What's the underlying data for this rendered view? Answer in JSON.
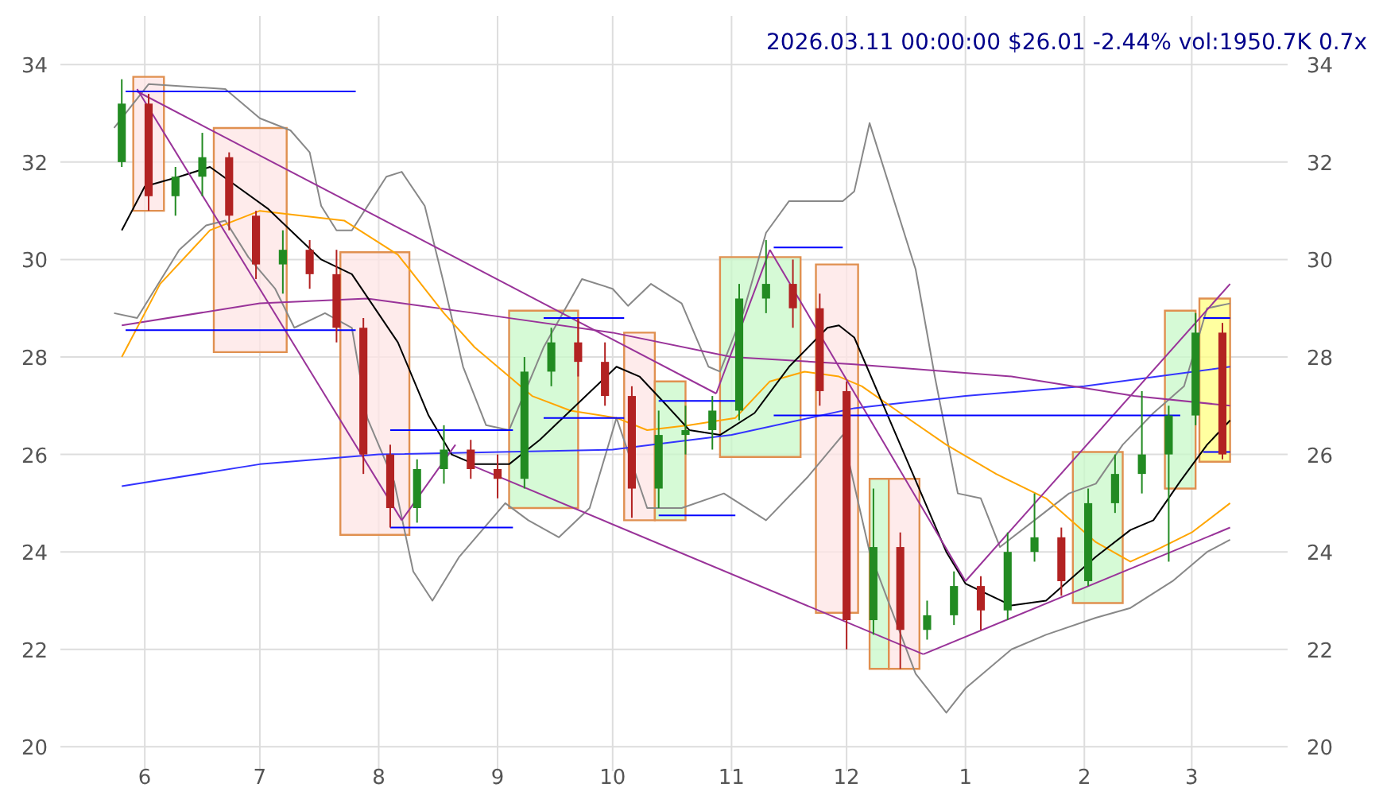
{
  "chart_data": {
    "type": "candlestick",
    "title": "2026.03.11 00:00:00 $26.01 -2.44% vol:1950.7K 0.7x",
    "xlim": [
      "2025-05-10",
      "2026-03-26"
    ],
    "xticks": [
      {
        "value": "2025-06-01",
        "label": "6"
      },
      {
        "value": "2025-07-01",
        "label": "7"
      },
      {
        "value": "2025-08-01",
        "label": "8"
      },
      {
        "value": "2025-09-01",
        "label": "9"
      },
      {
        "value": "2025-10-01",
        "label": "10"
      },
      {
        "value": "2025-11-01",
        "label": "11"
      },
      {
        "value": "2025-12-01",
        "label": "12"
      },
      {
        "value": "2026-01-01",
        "label": "1"
      },
      {
        "value": "2026-02-01",
        "label": "2"
      },
      {
        "value": "2026-03-01",
        "label": "3"
      }
    ],
    "ylim": [
      19.5,
      35
    ],
    "yticks": [
      20,
      22,
      24,
      26,
      28,
      30,
      32,
      34
    ],
    "y2lim": [
      19.5,
      35
    ],
    "y2ticks": [
      20,
      22,
      24,
      26,
      28,
      30,
      32,
      34
    ],
    "grid": true,
    "x": [
      "2025-05-26",
      "2025-06-02",
      "2025-06-09",
      "2025-06-16",
      "2025-06-23",
      "2025-06-30",
      "2025-07-07",
      "2025-07-14",
      "2025-07-21",
      "2025-07-28",
      "2025-08-04",
      "2025-08-11",
      "2025-08-18",
      "2025-08-25",
      "2025-09-01",
      "2025-09-08",
      "2025-09-15",
      "2025-09-22",
      "2025-09-29",
      "2025-10-06",
      "2025-10-13",
      "2025-10-20",
      "2025-10-27",
      "2025-11-03",
      "2025-11-10",
      "2025-11-17",
      "2025-11-24",
      "2025-12-01",
      "2025-12-08",
      "2025-12-15",
      "2025-12-22",
      "2025-12-29",
      "2026-01-05",
      "2026-01-12",
      "2026-01-19",
      "2026-01-26",
      "2026-02-02",
      "2026-02-09",
      "2026-02-16",
      "2026-02-23",
      "2026-03-02",
      "2026-03-09"
    ],
    "ohlc": [
      [
        32.0,
        33.7,
        31.9,
        33.2
      ],
      [
        33.2,
        33.4,
        31.0,
        31.3
      ],
      [
        31.3,
        31.9,
        30.9,
        31.7
      ],
      [
        31.7,
        32.6,
        31.3,
        32.1
      ],
      [
        32.1,
        32.2,
        30.6,
        30.9
      ],
      [
        30.9,
        31.0,
        29.6,
        29.9
      ],
      [
        29.9,
        30.6,
        29.3,
        30.2
      ],
      [
        30.2,
        30.4,
        29.4,
        29.7
      ],
      [
        29.7,
        30.2,
        28.3,
        28.6
      ],
      [
        28.6,
        28.8,
        25.6,
        26.0
      ],
      [
        26.0,
        26.2,
        24.5,
        24.9
      ],
      [
        24.9,
        25.9,
        24.6,
        25.7
      ],
      [
        25.7,
        26.6,
        25.4,
        26.1
      ],
      [
        26.1,
        26.3,
        25.5,
        25.7
      ],
      [
        25.7,
        26.0,
        25.1,
        25.5
      ],
      [
        25.5,
        28.0,
        25.3,
        27.7
      ],
      [
        27.7,
        28.6,
        27.4,
        28.3
      ],
      [
        28.3,
        28.8,
        27.6,
        27.9
      ],
      [
        27.9,
        28.3,
        27.0,
        27.2
      ],
      [
        27.2,
        27.4,
        24.7,
        25.3
      ],
      [
        25.3,
        26.9,
        24.9,
        26.4
      ],
      [
        26.4,
        27.0,
        26.0,
        26.5
      ],
      [
        26.5,
        27.2,
        26.1,
        26.9
      ],
      [
        26.9,
        29.5,
        26.7,
        29.2
      ],
      [
        29.2,
        30.4,
        28.9,
        29.5
      ],
      [
        29.5,
        30.0,
        28.6,
        29.0
      ],
      [
        29.0,
        29.3,
        27.0,
        27.3
      ],
      [
        27.3,
        27.5,
        22.0,
        22.6
      ],
      [
        22.6,
        25.3,
        22.3,
        24.1
      ],
      [
        24.1,
        24.4,
        21.6,
        22.4
      ],
      [
        22.4,
        23.0,
        22.2,
        22.7
      ],
      [
        22.7,
        23.6,
        22.5,
        23.3
      ],
      [
        23.3,
        23.5,
        22.4,
        22.8
      ],
      [
        22.8,
        24.4,
        22.6,
        24.0
      ],
      [
        24.0,
        25.2,
        23.8,
        24.3
      ],
      [
        24.3,
        24.5,
        23.1,
        23.4
      ],
      [
        23.4,
        25.3,
        23.3,
        25.0
      ],
      [
        25.0,
        26.0,
        24.8,
        25.6
      ],
      [
        25.6,
        27.3,
        25.2,
        26.0
      ],
      [
        26.0,
        27.0,
        23.8,
        26.8
      ],
      [
        26.8,
        28.9,
        26.6,
        28.5
      ],
      [
        28.5,
        28.7,
        25.9,
        26.0
      ]
    ],
    "series": [
      {
        "type": "area",
        "color": "#fde4e4",
        "x": [
          "2025-05-29",
          "2025-05-29",
          "2025-06-06",
          "2025-06-06"
        ],
        "values": [
          31.0,
          33.75,
          33.75,
          31.0
        ]
      },
      {
        "type": "area",
        "color": "#fde4e4",
        "x": [
          "2025-06-19",
          "2025-06-19",
          "2025-07-08",
          "2025-07-08"
        ],
        "values": [
          28.1,
          32.7,
          32.7,
          28.1
        ]
      },
      {
        "type": "area",
        "color": "#fde4e4",
        "x": [
          "2025-07-22",
          "2025-07-22",
          "2025-08-09",
          "2025-08-09"
        ],
        "values": [
          24.35,
          30.15,
          30.15,
          24.35
        ]
      },
      {
        "type": "area",
        "color": "#c8f8c8",
        "x": [
          "2025-09-04",
          "2025-09-04",
          "2025-09-22",
          "2025-09-22"
        ],
        "values": [
          24.9,
          28.95,
          28.95,
          24.9
        ]
      },
      {
        "type": "area",
        "color": "#fde4e4",
        "x": [
          "2025-10-04",
          "2025-10-04",
          "2025-10-12",
          "2025-10-12"
        ],
        "values": [
          24.65,
          28.5,
          28.5,
          24.65
        ]
      },
      {
        "type": "area",
        "color": "#c8f8c8",
        "x": [
          "2025-10-12",
          "2025-10-12",
          "2025-10-20",
          "2025-10-20"
        ],
        "values": [
          24.65,
          27.5,
          27.5,
          24.65
        ]
      },
      {
        "type": "area",
        "color": "#c8f8c8",
        "x": [
          "2025-10-29",
          "2025-10-29",
          "2025-11-19",
          "2025-11-19"
        ],
        "values": [
          25.95,
          30.05,
          30.05,
          25.95
        ]
      },
      {
        "type": "area",
        "color": "#fde4e4",
        "x": [
          "2025-11-23",
          "2025-11-23",
          "2025-12-04",
          "2025-12-04"
        ],
        "values": [
          22.75,
          29.9,
          29.9,
          22.75
        ]
      },
      {
        "type": "area",
        "color": "#c8f8c8",
        "x": [
          "2025-12-07",
          "2025-12-07",
          "2025-12-12",
          "2025-12-12"
        ],
        "values": [
          21.6,
          25.5,
          25.5,
          21.6
        ]
      },
      {
        "type": "area",
        "color": "#fde4e4",
        "x": [
          "2025-12-12",
          "2025-12-12",
          "2025-12-20",
          "2025-12-20"
        ],
        "values": [
          21.6,
          25.5,
          25.5,
          21.6
        ]
      },
      {
        "type": "area",
        "color": "#c8f8c8",
        "x": [
          "2026-01-29",
          "2026-01-29",
          "2026-02-11",
          "2026-02-11"
        ],
        "values": [
          22.95,
          26.05,
          26.05,
          22.95
        ]
      },
      {
        "type": "area",
        "color": "#c8f8c8",
        "x": [
          "2026-02-22",
          "2026-02-22",
          "2026-03-02",
          "2026-03-02"
        ],
        "values": [
          25.3,
          28.95,
          28.95,
          25.3
        ]
      },
      {
        "type": "area",
        "color": "#ffff80",
        "x": [
          "2026-03-03",
          "2026-03-03",
          "2026-03-11",
          "2026-03-11"
        ],
        "values": [
          25.85,
          29.2,
          29.2,
          25.85
        ]
      },
      {
        "type": "line",
        "color": "#888888",
        "x": [
          "2025-05-24",
          "2025-06-02",
          "2025-06-22",
          "2025-07-01",
          "2025-07-09",
          "2025-07-14",
          "2025-07-17",
          "2025-07-21",
          "2025-07-25",
          "2025-08-03",
          "2025-08-07",
          "2025-08-13",
          "2025-08-18",
          "2025-08-23",
          "2025-08-29",
          "2025-09-04",
          "2025-09-13",
          "2025-09-23",
          "2025-10-01",
          "2025-10-05",
          "2025-10-11",
          "2025-10-19",
          "2025-10-26",
          "2025-10-29",
          "2025-11-04",
          "2025-11-10",
          "2025-11-16",
          "2025-11-30",
          "2025-12-03",
          "2025-12-07",
          "2025-12-19",
          "2025-12-24",
          "2025-12-30",
          "2026-01-05",
          "2026-01-10",
          "2026-01-19",
          "2026-01-28",
          "2026-02-04",
          "2026-02-11",
          "2026-02-19",
          "2026-02-27",
          "2026-03-05",
          "2026-03-11"
        ],
        "values": [
          32.7,
          33.6,
          33.5,
          32.9,
          32.65,
          32.2,
          31.1,
          30.6,
          30.6,
          31.7,
          31.8,
          31.1,
          29.5,
          27.8,
          26.6,
          26.5,
          28.2,
          29.6,
          29.4,
          29.05,
          29.5,
          29.1,
          27.8,
          27.7,
          28.9,
          30.55,
          31.2,
          31.2,
          31.4,
          32.8,
          29.8,
          27.6,
          25.2,
          25.1,
          24.1,
          24.65,
          25.2,
          25.4,
          26.2,
          26.85,
          27.4,
          29.0,
          29.1
        ]
      },
      {
        "type": "line",
        "color": "#888888",
        "x": [
          "2025-05-24",
          "2025-05-30",
          "2025-06-10",
          "2025-06-17",
          "2025-06-22",
          "2025-06-28",
          "2025-07-05",
          "2025-07-10",
          "2025-07-18",
          "2025-07-25",
          "2025-07-29",
          "2025-08-05",
          "2025-08-10",
          "2025-08-15",
          "2025-08-22",
          "2025-08-28",
          "2025-09-03",
          "2025-09-09",
          "2025-09-17",
          "2025-09-25",
          "2025-10-02",
          "2025-10-10",
          "2025-10-19",
          "2025-10-30",
          "2025-11-10",
          "2025-11-21",
          "2025-11-30",
          "2025-12-07",
          "2025-12-19",
          "2025-12-27",
          "2026-01-01",
          "2026-01-13",
          "2026-01-22",
          "2026-02-04",
          "2026-02-13",
          "2026-02-24",
          "2026-03-05",
          "2026-03-11"
        ],
        "values": [
          28.9,
          28.8,
          30.2,
          30.7,
          30.8,
          30.05,
          29.4,
          28.6,
          28.9,
          28.6,
          26.75,
          25.45,
          23.6,
          23.0,
          23.9,
          24.45,
          25.0,
          24.65,
          24.3,
          24.9,
          26.75,
          24.9,
          24.9,
          25.2,
          24.65,
          25.55,
          26.4,
          24.0,
          21.5,
          20.7,
          21.2,
          22.0,
          22.3,
          22.65,
          22.85,
          23.4,
          24.0,
          24.25
        ]
      },
      {
        "type": "line",
        "color": "#3333ff",
        "x": [
          "2025-05-26",
          "2025-07-01",
          "2025-08-01",
          "2025-10-01",
          "2025-11-01",
          "2025-12-03",
          "2026-01-01",
          "2026-02-01",
          "2026-03-11"
        ],
        "values": [
          25.35,
          25.8,
          26.0,
          26.1,
          26.4,
          26.95,
          27.2,
          27.4,
          27.8
        ]
      },
      {
        "type": "line",
        "color": "#993399",
        "x": [
          "2025-05-26",
          "2025-07-01",
          "2025-07-29",
          "2025-08-26",
          "2025-10-01",
          "2025-11-01",
          "2025-12-03",
          "2026-01-13",
          "2026-02-14",
          "2026-03-11"
        ],
        "values": [
          28.65,
          29.1,
          29.2,
          28.9,
          28.5,
          28.0,
          27.85,
          27.6,
          27.2,
          27.0
        ]
      },
      {
        "type": "line",
        "color": "#ffa500",
        "x": [
          "2025-05-26",
          "2025-06-05",
          "2025-06-18",
          "2025-07-01",
          "2025-07-23",
          "2025-08-06",
          "2025-08-18",
          "2025-08-26",
          "2025-09-10",
          "2025-09-20",
          "2025-10-02",
          "2025-10-10",
          "2025-10-21",
          "2025-11-02",
          "2025-11-11",
          "2025-11-20",
          "2025-11-29",
          "2025-12-05",
          "2025-12-15",
          "2025-12-27",
          "2026-01-09",
          "2026-01-22",
          "2026-02-04",
          "2026-02-13",
          "2026-02-20",
          "2026-03-01",
          "2026-03-11"
        ],
        "values": [
          28.0,
          29.5,
          30.6,
          31.0,
          30.8,
          30.1,
          28.9,
          28.2,
          27.2,
          26.9,
          26.75,
          26.5,
          26.6,
          26.75,
          27.5,
          27.7,
          27.6,
          27.4,
          26.85,
          26.2,
          25.6,
          25.1,
          24.2,
          23.8,
          24.05,
          24.4,
          25.0
        ]
      },
      {
        "type": "line",
        "color": "#000000",
        "x": [
          "2025-05-26",
          "2025-06-01",
          "2025-06-10",
          "2025-06-18",
          "2025-07-03",
          "2025-07-17",
          "2025-07-25",
          "2025-08-06",
          "2025-08-14",
          "2025-08-20",
          "2025-08-26",
          "2025-09-04",
          "2025-09-12",
          "2025-09-24",
          "2025-10-02",
          "2025-10-08",
          "2025-10-14",
          "2025-10-21",
          "2025-10-29",
          "2025-11-07",
          "2025-11-16",
          "2025-11-26",
          "2025-11-29",
          "2025-12-03",
          "2025-12-15",
          "2025-12-27",
          "2026-01-01",
          "2026-01-13",
          "2026-01-22",
          "2026-02-04",
          "2026-02-13",
          "2026-02-19",
          "2026-02-26",
          "2026-03-05",
          "2026-03-11"
        ],
        "values": [
          30.6,
          31.5,
          31.7,
          31.9,
          31.05,
          30.0,
          29.7,
          28.3,
          26.8,
          26.0,
          25.8,
          25.8,
          26.3,
          27.2,
          27.8,
          27.6,
          27.1,
          26.5,
          26.4,
          26.85,
          27.8,
          28.6,
          28.65,
          28.4,
          26.2,
          24.0,
          23.35,
          22.9,
          23.0,
          23.9,
          24.45,
          24.65,
          25.45,
          26.2,
          26.7
        ]
      },
      {
        "type": "line",
        "color": "#993399",
        "x": [
          "2025-05-30",
          "2025-10-28"
        ],
        "values": [
          33.45,
          27.25
        ]
      },
      {
        "type": "line",
        "color": "#993399",
        "x": [
          "2025-05-30",
          "2025-08-07"
        ],
        "values": [
          33.5,
          24.65
        ]
      },
      {
        "type": "line",
        "color": "#993399",
        "x": [
          "2025-08-07",
          "2025-08-21"
        ],
        "values": [
          24.65,
          26.2
        ]
      },
      {
        "type": "line",
        "color": "#993399",
        "x": [
          "2025-08-26",
          "2025-12-21"
        ],
        "values": [
          25.75,
          21.9
        ]
      },
      {
        "type": "line",
        "color": "#993399",
        "x": [
          "2025-12-21",
          "2026-03-11"
        ],
        "values": [
          21.9,
          24.5
        ]
      },
      {
        "type": "line",
        "color": "#993399",
        "x": [
          "2026-01-01",
          "2026-03-11"
        ],
        "values": [
          23.4,
          29.5
        ]
      },
      {
        "type": "line",
        "color": "#993399",
        "x": [
          "2025-10-28",
          "2025-11-11"
        ],
        "values": [
          27.25,
          30.2
        ]
      },
      {
        "type": "line",
        "color": "#993399",
        "x": [
          "2025-11-11",
          "2026-01-01"
        ],
        "values": [
          30.2,
          23.4
        ]
      },
      {
        "type": "line",
        "color": "#0000ff",
        "x": [
          "2025-05-27",
          "2025-07-26"
        ],
        "values": [
          33.45,
          33.45
        ]
      },
      {
        "type": "line",
        "color": "#0000ff",
        "x": [
          "2025-05-27",
          "2025-07-26"
        ],
        "values": [
          28.55,
          28.55
        ]
      },
      {
        "type": "line",
        "color": "#0000ff",
        "x": [
          "2025-08-04",
          "2025-09-05"
        ],
        "values": [
          24.5,
          24.5
        ]
      },
      {
        "type": "line",
        "color": "#0000ff",
        "x": [
          "2025-08-04",
          "2025-09-05"
        ],
        "values": [
          26.5,
          26.5
        ]
      },
      {
        "type": "line",
        "color": "#0000ff",
        "x": [
          "2025-09-13",
          "2025-10-04"
        ],
        "values": [
          28.8,
          28.8
        ]
      },
      {
        "type": "line",
        "color": "#0000ff",
        "x": [
          "2025-09-13",
          "2025-10-04"
        ],
        "values": [
          26.75,
          26.75
        ]
      },
      {
        "type": "line",
        "color": "#0000ff",
        "x": [
          "2025-10-13",
          "2025-11-02"
        ],
        "values": [
          24.75,
          24.75
        ]
      },
      {
        "type": "line",
        "color": "#0000ff",
        "x": [
          "2025-10-13",
          "2025-11-02"
        ],
        "values": [
          27.1,
          27.1
        ]
      },
      {
        "type": "line",
        "color": "#0000ff",
        "x": [
          "2025-11-12",
          "2025-11-30"
        ],
        "values": [
          30.25,
          30.25
        ]
      },
      {
        "type": "line",
        "color": "#0000ff",
        "x": [
          "2025-11-12",
          "2026-02-26"
        ],
        "values": [
          26.8,
          26.8
        ]
      },
      {
        "type": "line",
        "color": "#0000ff",
        "x": [
          "2026-03-04",
          "2026-03-11"
        ],
        "values": [
          28.8,
          28.8
        ]
      },
      {
        "type": "line",
        "color": "#0000ff",
        "x": [
          "2026-03-04",
          "2026-03-11"
        ],
        "values": [
          26.05,
          26.05
        ]
      }
    ]
  }
}
